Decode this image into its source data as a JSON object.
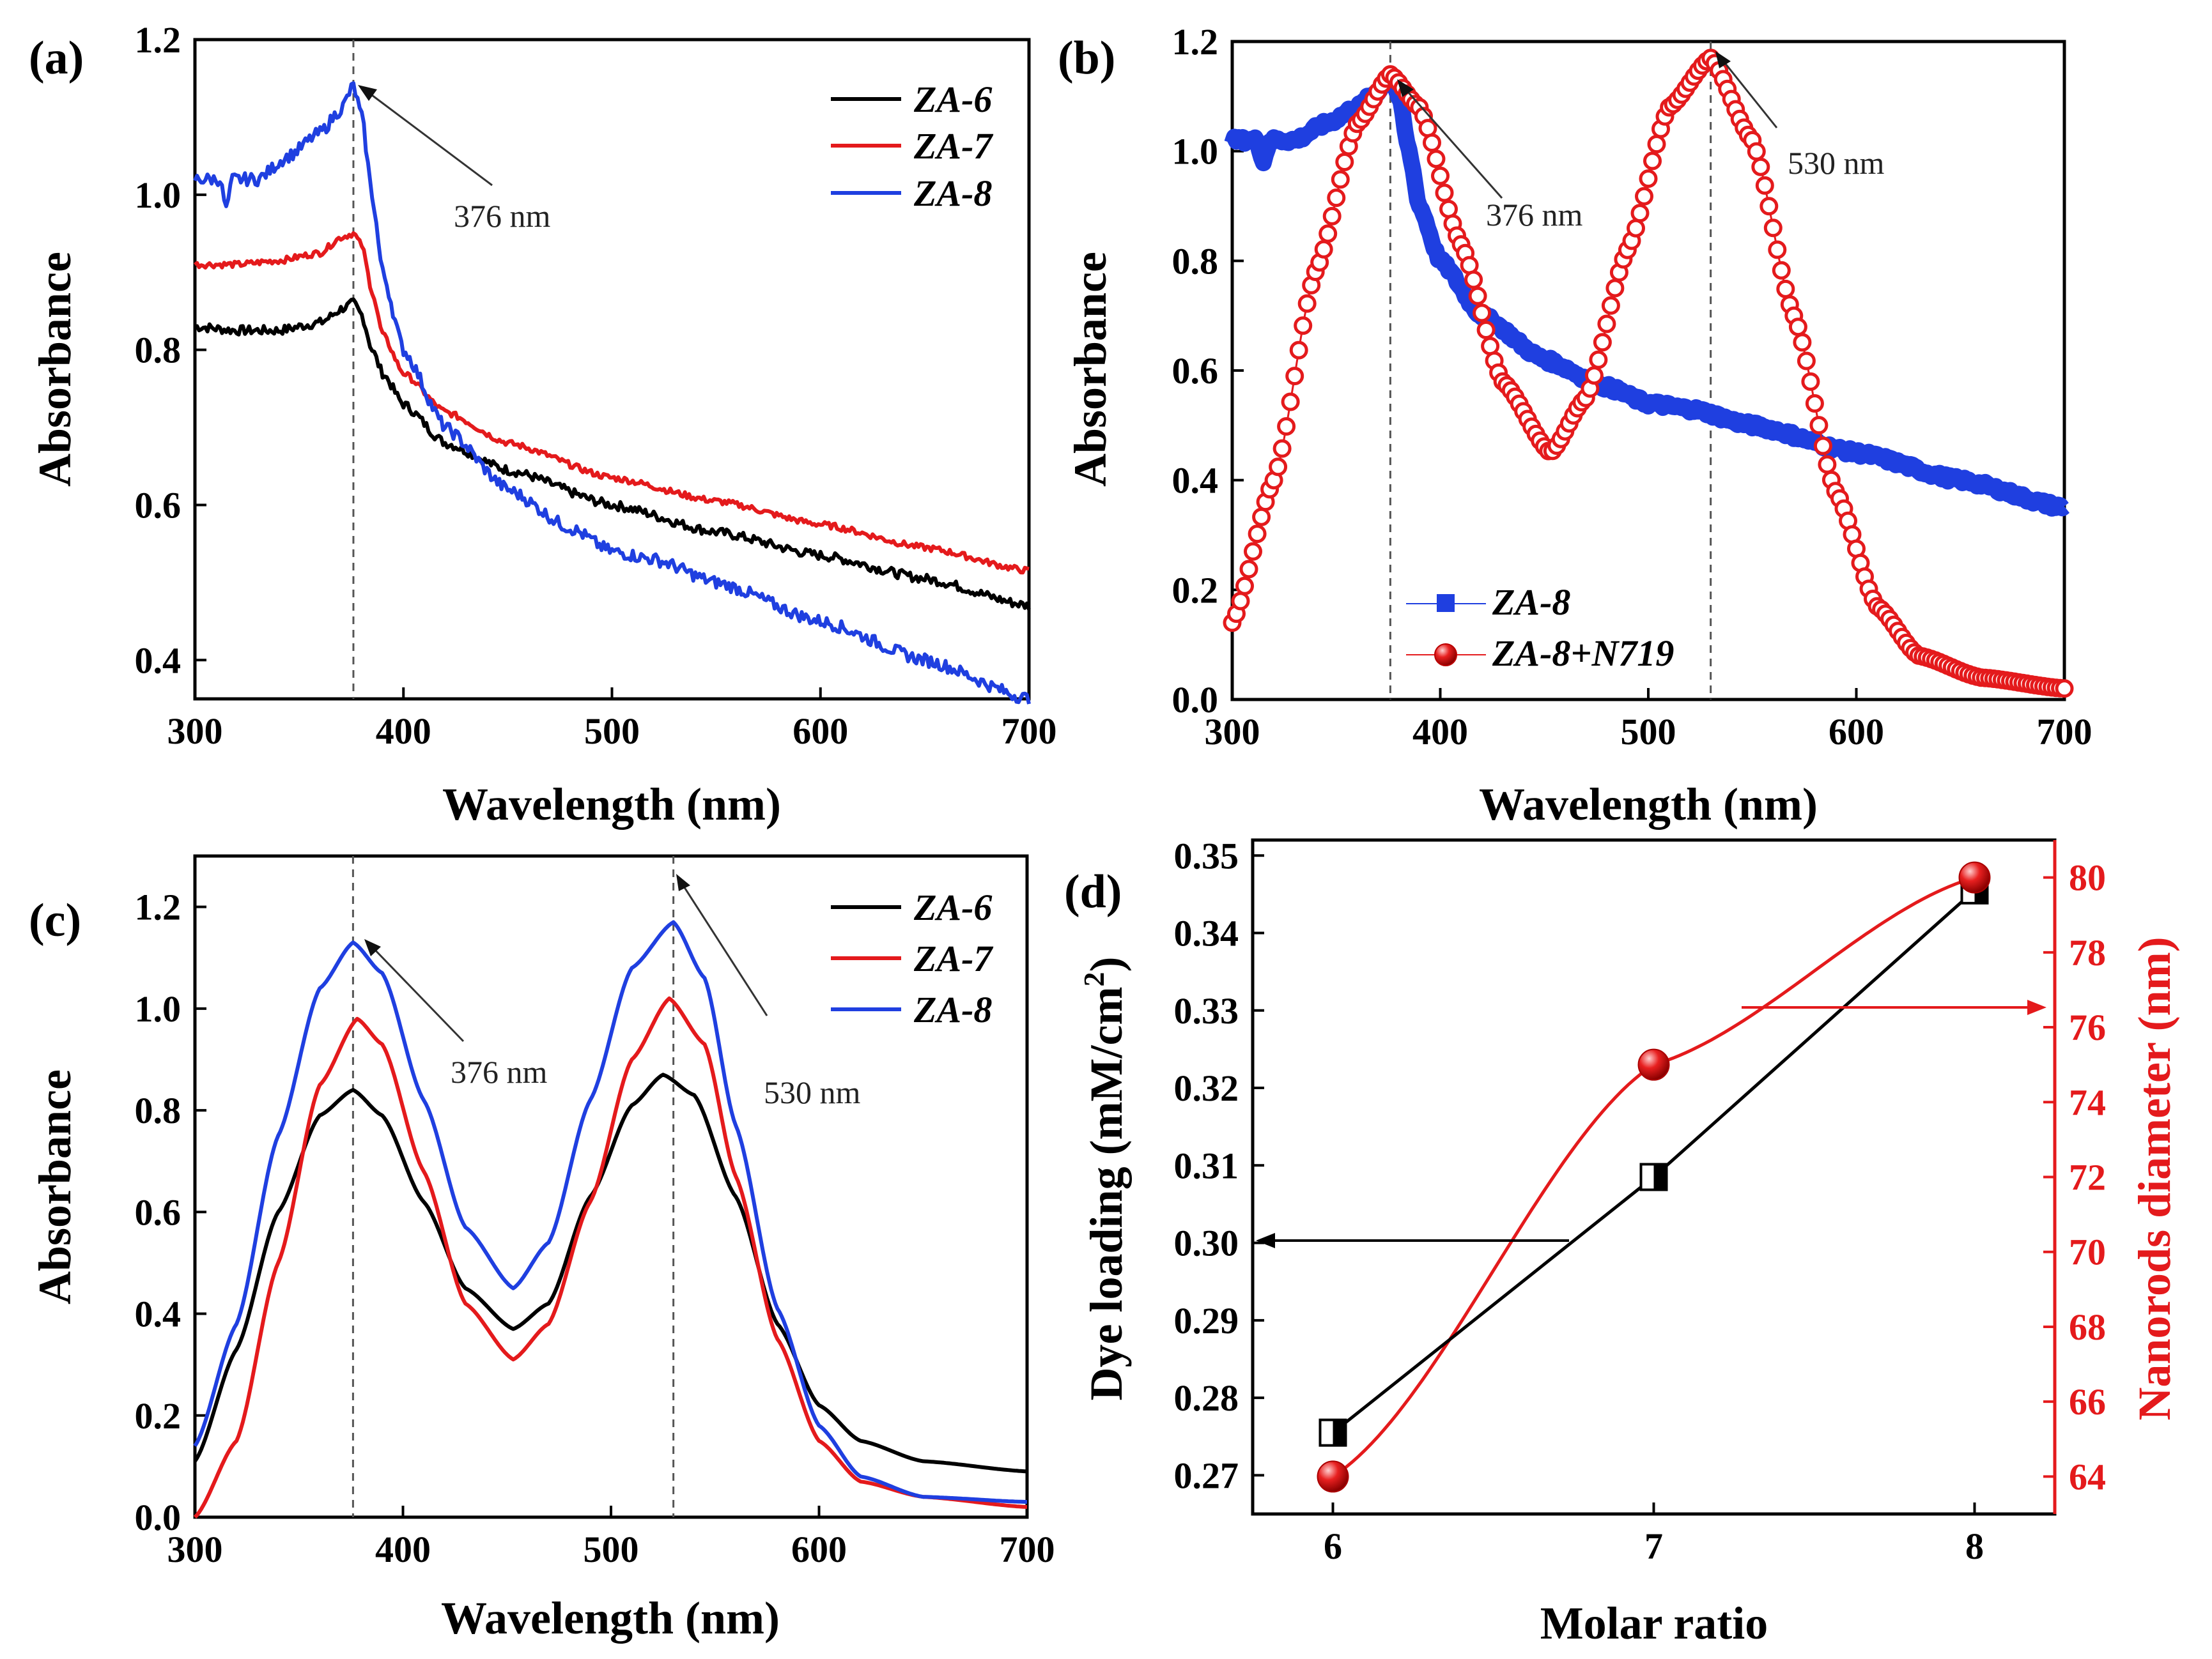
{
  "chart_data": [
    {
      "panel": "(a)",
      "type": "line",
      "xlabel": "Wavelength (nm)",
      "ylabel": "Absorbance",
      "xlim": [
        300,
        700
      ],
      "ylim": [
        0.35,
        1.2
      ],
      "xticks": [
        300,
        400,
        500,
        600,
        700
      ],
      "yticks": [
        0.4,
        0.6,
        0.8,
        1.0,
        1.2
      ],
      "ytick_labels": [
        "0.4",
        "0.6",
        "0.8",
        "1.0",
        "1.2"
      ],
      "annotations": [
        {
          "text": "376 nm",
          "x": 376,
          "y": 1.14
        }
      ],
      "dashed_x": [
        376
      ],
      "legend_position": "top-right",
      "series": [
        {
          "name": "ZA-6",
          "color": "#000000",
          "noise": 0.006,
          "x": [
            300,
            320,
            340,
            360,
            372,
            376,
            380,
            385,
            390,
            400,
            420,
            450,
            500,
            550,
            600,
            650,
            700
          ],
          "y": [
            0.83,
            0.825,
            0.825,
            0.835,
            0.855,
            0.86,
            0.845,
            0.8,
            0.77,
            0.73,
            0.68,
            0.645,
            0.6,
            0.565,
            0.535,
            0.505,
            0.47
          ]
        },
        {
          "name": "ZA-7",
          "color": "#e41a1c",
          "noise": 0.004,
          "x": [
            300,
            320,
            340,
            360,
            370,
            376,
            380,
            385,
            390,
            400,
            420,
            450,
            500,
            550,
            600,
            650,
            700
          ],
          "y": [
            0.91,
            0.91,
            0.915,
            0.925,
            0.945,
            0.95,
            0.935,
            0.875,
            0.82,
            0.77,
            0.72,
            0.68,
            0.635,
            0.605,
            0.575,
            0.545,
            0.515
          ]
        },
        {
          "name": "ZA-8",
          "color": "#1f3fe0",
          "noise": 0.008,
          "x": [
            300,
            330,
            345,
            360,
            370,
            376,
            380,
            385,
            390,
            400,
            420,
            450,
            480,
            500,
            520,
            550,
            600,
            650,
            700
          ],
          "y": [
            1.02,
            1.02,
            1.05,
            1.08,
            1.11,
            1.14,
            1.1,
            1.0,
            0.9,
            0.8,
            0.7,
            0.62,
            0.57,
            0.54,
            0.53,
            0.5,
            0.45,
            0.4,
            0.35
          ]
        }
      ]
    },
    {
      "panel": "(b)",
      "type": "line",
      "xlabel": "Wavelength (nm)",
      "ylabel": "Absorbance",
      "xlim": [
        300,
        700
      ],
      "ylim": [
        0.0,
        1.2
      ],
      "xticks": [
        300,
        400,
        500,
        600,
        700
      ],
      "yticks": [
        0.0,
        0.2,
        0.4,
        0.6,
        0.8,
        1.0,
        1.2
      ],
      "ytick_labels": [
        "0.0",
        "0.2",
        "0.4",
        "0.6",
        "0.8",
        "1.0",
        "1.2"
      ],
      "annotations": [
        {
          "text": "376 nm",
          "x": 376,
          "y": 1.12
        },
        {
          "text": "530 nm",
          "x": 530,
          "y": 1.17
        }
      ],
      "dashed_x": [
        376,
        530
      ],
      "legend_position": "bottom-left",
      "series": [
        {
          "name": "ZA-8",
          "color": "#1f3fe0",
          "marker": "square",
          "noise": 0.006,
          "x": [
            300,
            330,
            345,
            360,
            370,
            376,
            380,
            385,
            390,
            400,
            420,
            450,
            480,
            500,
            520,
            550,
            600,
            650,
            700
          ],
          "y": [
            1.02,
            1.02,
            1.05,
            1.08,
            1.11,
            1.14,
            1.1,
            1.0,
            0.9,
            0.8,
            0.7,
            0.62,
            0.57,
            0.54,
            0.53,
            0.5,
            0.45,
            0.4,
            0.35
          ]
        },
        {
          "name": "ZA-8+N719",
          "color": "#e41a1c",
          "marker": "circle",
          "noise": 0,
          "x": [
            300,
            320,
            340,
            360,
            376,
            390,
            410,
            430,
            453,
            470,
            490,
            510,
            530,
            550,
            570,
            590,
            610,
            630,
            660,
            700
          ],
          "y": [
            0.14,
            0.4,
            0.78,
            1.05,
            1.14,
            1.08,
            0.83,
            0.58,
            0.45,
            0.55,
            0.82,
            1.08,
            1.17,
            1.02,
            0.7,
            0.38,
            0.17,
            0.08,
            0.04,
            0.02
          ]
        }
      ]
    },
    {
      "panel": "(c)",
      "type": "line",
      "xlabel": "Wavelength (nm)",
      "ylabel": "Absorbance",
      "xlim": [
        300,
        700
      ],
      "ylim": [
        0.0,
        1.3
      ],
      "xticks": [
        300,
        400,
        500,
        600,
        700
      ],
      "yticks": [
        0.0,
        0.2,
        0.4,
        0.6,
        0.8,
        1.0,
        1.2
      ],
      "ytick_labels": [
        "0.0",
        "0.2",
        "0.4",
        "0.6",
        "0.8",
        "1.0",
        "1.2"
      ],
      "annotations": [
        {
          "text": "376 nm",
          "x": 376,
          "y": 1.13
        },
        {
          "text": "530 nm",
          "x": 530,
          "y": 1.17
        }
      ],
      "dashed_x": [
        376,
        530
      ],
      "legend_position": "top-right",
      "series": [
        {
          "name": "ZA-6",
          "color": "#000000",
          "noise": 0,
          "x": [
            300,
            320,
            340,
            360,
            376,
            390,
            410,
            430,
            453,
            470,
            490,
            510,
            525,
            540,
            560,
            580,
            600,
            620,
            650,
            700
          ],
          "y": [
            0.11,
            0.33,
            0.6,
            0.79,
            0.84,
            0.79,
            0.62,
            0.45,
            0.37,
            0.42,
            0.63,
            0.81,
            0.87,
            0.83,
            0.63,
            0.38,
            0.22,
            0.15,
            0.11,
            0.09
          ]
        },
        {
          "name": "ZA-7",
          "color": "#e41a1c",
          "noise": 0,
          "x": [
            300,
            320,
            340,
            360,
            378,
            390,
            410,
            430,
            453,
            470,
            490,
            510,
            528,
            545,
            560,
            580,
            600,
            620,
            650,
            700
          ],
          "y": [
            0.0,
            0.15,
            0.5,
            0.85,
            0.98,
            0.93,
            0.68,
            0.42,
            0.31,
            0.38,
            0.62,
            0.9,
            1.02,
            0.93,
            0.67,
            0.35,
            0.15,
            0.07,
            0.04,
            0.02
          ]
        },
        {
          "name": "ZA-8",
          "color": "#1f3fe0",
          "noise": 0,
          "x": [
            300,
            320,
            340,
            360,
            376,
            390,
            410,
            430,
            453,
            470,
            490,
            510,
            530,
            545,
            560,
            580,
            600,
            620,
            650,
            700
          ],
          "y": [
            0.14,
            0.38,
            0.75,
            1.04,
            1.13,
            1.07,
            0.82,
            0.57,
            0.45,
            0.54,
            0.82,
            1.08,
            1.17,
            1.06,
            0.77,
            0.41,
            0.18,
            0.08,
            0.04,
            0.03
          ]
        }
      ]
    },
    {
      "panel": "(d)",
      "type": "line",
      "xlabel": "Molar ratio",
      "ylabel": "Dye loading (mM/cm",
      "ylabel_sup": "2",
      "ylabel_end": ")",
      "y2label": "Nanorods diameter (nm)",
      "xlim": [
        5.75,
        8.25
      ],
      "ylim": [
        0.265,
        0.352
      ],
      "y2lim": [
        63.0,
        81.0
      ],
      "xticks": [
        6,
        7,
        8
      ],
      "yticks": [
        0.27,
        0.28,
        0.29,
        0.3,
        0.31,
        0.32,
        0.33,
        0.34,
        0.35
      ],
      "ytick_labels": [
        "0.27",
        "0.28",
        "0.29",
        "0.30",
        "0.31",
        "0.32",
        "0.33",
        "0.34",
        "0.35"
      ],
      "y2ticks": [
        64,
        66,
        68,
        70,
        72,
        74,
        76,
        78,
        80
      ],
      "series": [
        {
          "name": "Dye loading",
          "color": "#000000",
          "marker": "half-filled-square",
          "axis": "left",
          "x": [
            6,
            7,
            8
          ],
          "y": [
            0.2755,
            0.3085,
            0.3455
          ]
        },
        {
          "name": "Nanorods diameter",
          "color": "#e41a1c",
          "marker": "sphere",
          "axis": "right",
          "x": [
            6,
            7,
            8
          ],
          "y": [
            64,
            75,
            80
          ]
        }
      ]
    }
  ]
}
